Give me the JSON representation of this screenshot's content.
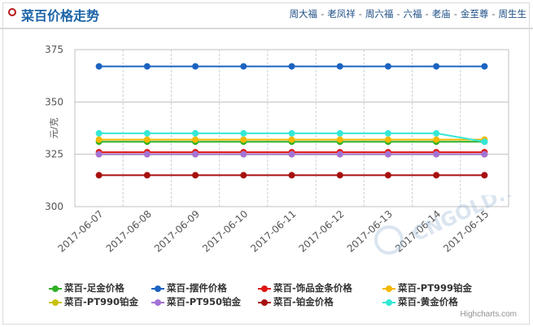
{
  "header": {
    "title": "菜百价格走势",
    "nav": [
      "周大福",
      "老凤祥",
      "周六福",
      "六福",
      "老庙",
      "金至尊",
      "周生生"
    ],
    "separator": "-"
  },
  "credit": "Highcharts.com",
  "watermark": "CNGOLD.COM",
  "colors": {
    "title": "#1c64a8",
    "nav": "#1d4e86",
    "grid": "#c0c0c0"
  },
  "chart_data": {
    "type": "line",
    "title": "菜百价格走势",
    "ylabel": "元/克",
    "xlabel": "",
    "ylim": [
      300,
      375
    ],
    "yticks": [
      300,
      325,
      350,
      375
    ],
    "grid": true,
    "legend_position": "bottom",
    "categories": [
      "2017-06-07",
      "2017-06-08",
      "2017-06-09",
      "2017-06-10",
      "2017-06-11",
      "2017-06-12",
      "2017-06-13",
      "2017-06-14",
      "2017-06-15"
    ],
    "series": [
      {
        "name": "菜百-足金价格",
        "color": "#2fb025",
        "values": [
          331,
          331,
          331,
          331,
          331,
          331,
          331,
          331,
          331
        ]
      },
      {
        "name": "菜百-摆件价格",
        "color": "#1a63c1",
        "values": [
          367,
          367,
          367,
          367,
          367,
          367,
          367,
          367,
          367
        ]
      },
      {
        "name": "菜百-饰品金条价格",
        "color": "#e01515",
        "values": [
          326,
          326,
          326,
          326,
          326,
          326,
          326,
          326,
          326
        ]
      },
      {
        "name": "菜百-PT999铂金",
        "color": "#f5b800",
        "values": [
          332,
          332,
          332,
          332,
          332,
          332,
          332,
          332,
          332
        ]
      },
      {
        "name": "菜百-PT990铂金",
        "color": "#c8c20a",
        "values": [
          325,
          325,
          325,
          325,
          325,
          325,
          325,
          325,
          325
        ]
      },
      {
        "name": "菜百-PT950铂金",
        "color": "#a472d6",
        "values": [
          325,
          325,
          325,
          325,
          325,
          325,
          325,
          325,
          325
        ]
      },
      {
        "name": "菜百-铂金价格",
        "color": "#a81010",
        "values": [
          315,
          315,
          315,
          315,
          315,
          315,
          315,
          315,
          315
        ]
      },
      {
        "name": "菜百-黄金价格",
        "color": "#35e8d6",
        "values": [
          335,
          335,
          335,
          335,
          335,
          335,
          335,
          335,
          331
        ]
      }
    ]
  }
}
